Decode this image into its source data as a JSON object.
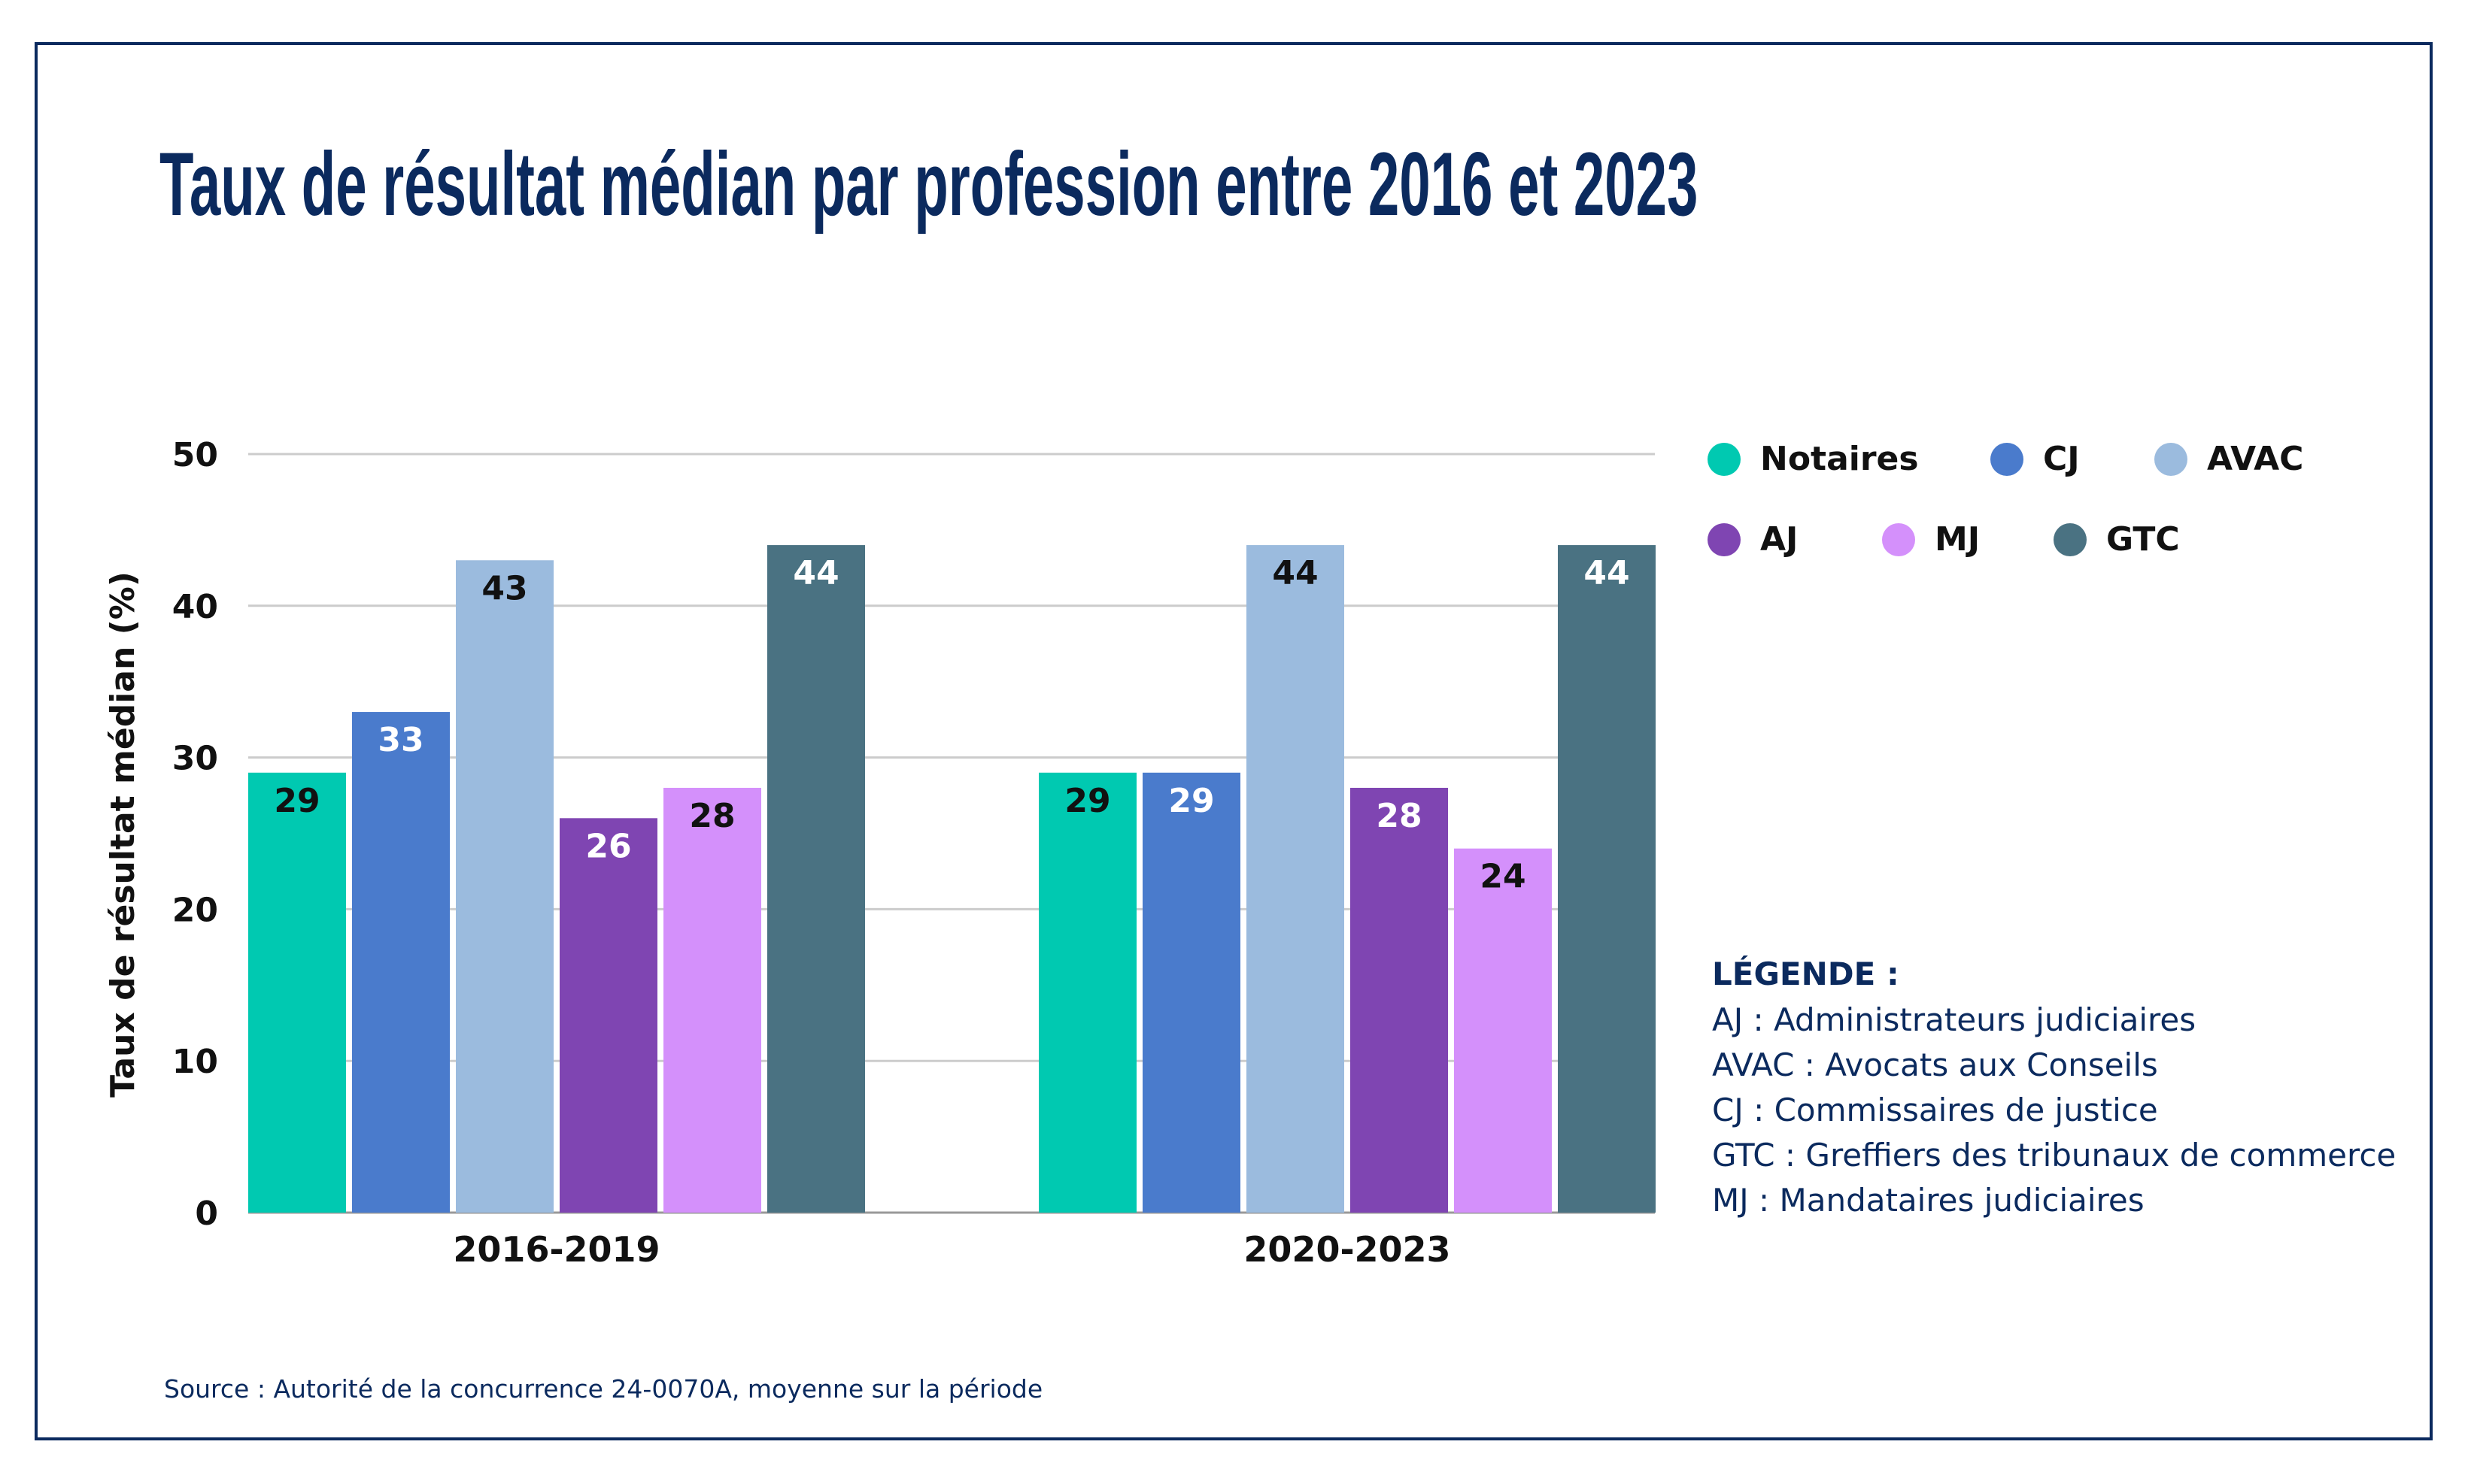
{
  "chart_data": {
    "type": "bar",
    "title": "Taux de résultat médian par profession entre 2016 et 2023",
    "xlabel": "",
    "ylabel": "Taux de résultat médian (%)",
    "ylim": [
      0,
      50
    ],
    "yticks": [
      0,
      10,
      20,
      30,
      40,
      50
    ],
    "categories": [
      "2016-2019",
      "2020-2023"
    ],
    "series": [
      {
        "name": "Notaires",
        "color": "#00c9b1",
        "label_color": "#111111",
        "values": [
          29,
          29
        ]
      },
      {
        "name": "CJ",
        "color": "#4a7bcc",
        "label_color": "#ffffff",
        "values": [
          33,
          29
        ]
      },
      {
        "name": "AVAC",
        "color": "#9bbbde",
        "label_color": "#111111",
        "values": [
          43,
          44
        ]
      },
      {
        "name": "AJ",
        "color": "#7f45b2",
        "label_color": "#ffffff",
        "values": [
          26,
          28
        ]
      },
      {
        "name": "MJ",
        "color": "#d490fb",
        "label_color": "#111111",
        "values": [
          28,
          24
        ]
      },
      {
        "name": "GTC",
        "color": "#4a7282",
        "label_color": "#ffffff",
        "values": [
          44,
          44
        ]
      }
    ],
    "legend_position": "top-right",
    "grid": true
  },
  "glossary": {
    "title": "LÉGENDE :",
    "lines": [
      "AJ : Administrateurs judiciaires",
      "AVAC : Avocats aux Conseils",
      "CJ : Commissaires de justice",
      "GTC : Greffiers des tribunaux de commerce",
      "MJ : Mandataires judiciaires"
    ]
  },
  "source": "Source : Autorité de la concurrence 24-0070A, moyenne sur la période",
  "colors": {
    "frame": "#0b2a5e",
    "title": "#0b2a5e",
    "grid": "#cccccc"
  }
}
